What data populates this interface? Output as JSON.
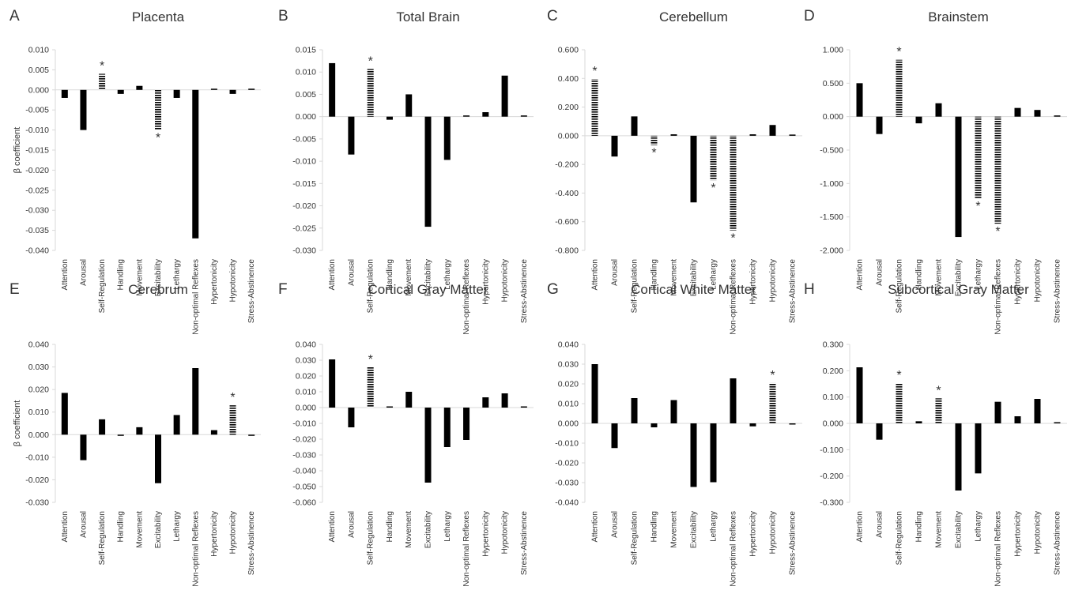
{
  "chart_data": [
    {
      "type": "bar",
      "panel_letter": "A",
      "title": "Placenta",
      "ylabel": "β coefficient",
      "ylim": [
        -0.04,
        0.01
      ],
      "ytick_step": 0.005,
      "ytick_decimals": 3,
      "categories": [
        "Attention",
        "Arousal",
        "Self-Regulation",
        "Handling",
        "Movement",
        "Excitability",
        "Lethargy",
        "Non-optimal Reflexes",
        "Hypertonicity",
        "Hypotonicity",
        "Stress-Abstinence"
      ],
      "values": [
        -0.002,
        -0.01,
        0.004,
        -0.001,
        0.001,
        -0.01,
        -0.002,
        -0.037,
        0.0,
        -0.001,
        0.0
      ],
      "significant": [
        false,
        false,
        true,
        false,
        false,
        true,
        false,
        false,
        false,
        false,
        false
      ],
      "star": "*"
    },
    {
      "type": "bar",
      "panel_letter": "B",
      "title": "Total Brain",
      "ylabel": "",
      "ylim": [
        -0.03,
        0.015
      ],
      "ytick_step": 0.005,
      "ytick_decimals": 3,
      "categories": [
        "Attention",
        "Arousal",
        "Self-Regulation",
        "Handling",
        "Movement",
        "Excitability",
        "Lethargy",
        "Non-optimal Reflexes",
        "Hypertonicity",
        "Hypotonicity",
        "Stress-Abstinence"
      ],
      "values": [
        0.012,
        -0.0085,
        0.0107,
        -0.0007,
        0.005,
        -0.0247,
        -0.0097,
        0.0002,
        0.001,
        0.0092,
        0.0002
      ],
      "significant": [
        false,
        false,
        true,
        false,
        false,
        false,
        false,
        false,
        false,
        false,
        false
      ],
      "star": "*"
    },
    {
      "type": "bar",
      "panel_letter": "C",
      "title": "Cerebellum",
      "ylabel": "",
      "ylim": [
        -0.8,
        0.6
      ],
      "ytick_step": 0.2,
      "ytick_decimals": 3,
      "categories": [
        "Attention",
        "Arousal",
        "Self-Regulation",
        "Handling",
        "Movement",
        "Excitability",
        "Lethargy",
        "Non-optimal Reflexes",
        "Hypertonicity",
        "Hypotonicity",
        "Stress-Abstinence"
      ],
      "values": [
        0.395,
        -0.145,
        0.135,
        -0.065,
        0.01,
        -0.465,
        -0.31,
        -0.66,
        0.01,
        0.075,
        0.005
      ],
      "significant": [
        true,
        false,
        false,
        true,
        false,
        false,
        true,
        true,
        false,
        false,
        false
      ],
      "star": "*"
    },
    {
      "type": "bar",
      "panel_letter": "D",
      "title": "Brainstem",
      "ylabel": "",
      "ylim": [
        -2.0,
        1.0
      ],
      "ytick_step": 0.5,
      "ytick_decimals": 3,
      "categories": [
        "Attention",
        "Arousal",
        "Self-Regulation",
        "Handling",
        "Movement",
        "Excitability",
        "Lethargy",
        "Non-optimal Reflexes",
        "Hypertonicity",
        "Hypotonicity",
        "Stress-Abstinence"
      ],
      "values": [
        0.5,
        -0.26,
        0.85,
        -0.1,
        0.2,
        -1.8,
        -1.22,
        -1.6,
        0.13,
        0.1,
        0.01
      ],
      "significant": [
        false,
        false,
        true,
        false,
        false,
        false,
        true,
        true,
        false,
        false,
        false
      ],
      "star": "*"
    },
    {
      "type": "bar",
      "panel_letter": "E",
      "title": "Cerebrum",
      "ylabel": "β coefficient",
      "ylim": [
        -0.03,
        0.04
      ],
      "ytick_step": 0.01,
      "ytick_decimals": 3,
      "categories": [
        "Attention",
        "Arousal",
        "Self-Regulation",
        "Handling",
        "Movement",
        "Excitability",
        "Lethargy",
        "Non-optimal Reflexes",
        "Hypertonicity",
        "Hypotonicity",
        "Stress-Abstinence"
      ],
      "values": [
        0.0185,
        -0.0113,
        0.0068,
        -0.0003,
        0.0033,
        -0.0215,
        0.0087,
        0.0295,
        0.002,
        0.013,
        -0.0003
      ],
      "significant": [
        false,
        false,
        false,
        false,
        false,
        false,
        false,
        false,
        false,
        true,
        false
      ],
      "star": "*"
    },
    {
      "type": "bar",
      "panel_letter": "F",
      "title": "Cortical Gray Matter",
      "ylabel": "",
      "ylim": [
        -0.06,
        0.04
      ],
      "ytick_step": 0.01,
      "ytick_decimals": 3,
      "categories": [
        "Attention",
        "Arousal",
        "Self-Regulation",
        "Handling",
        "Movement",
        "Excitability",
        "Lethargy",
        "Non-optimal Reflexes",
        "Hypertonicity",
        "Hypotonicity",
        "Stress-Abstinence"
      ],
      "values": [
        0.0305,
        -0.0125,
        0.0255,
        0.0005,
        0.01,
        -0.0475,
        -0.025,
        -0.0205,
        0.0065,
        0.009,
        0.0005
      ],
      "significant": [
        false,
        false,
        true,
        false,
        false,
        false,
        false,
        false,
        false,
        false,
        false
      ],
      "star": "*"
    },
    {
      "type": "bar",
      "panel_letter": "G",
      "title": "Cortical White Matter",
      "ylabel": "",
      "ylim": [
        -0.04,
        0.04
      ],
      "ytick_step": 0.01,
      "ytick_decimals": 3,
      "categories": [
        "Attention",
        "Arousal",
        "Self-Regulation",
        "Handling",
        "Movement",
        "Excitability",
        "Lethargy",
        "Non-optimal Reflexes",
        "Hypertonicity",
        "Hypotonicity",
        "Stress-Abstinence"
      ],
      "values": [
        0.03,
        -0.0125,
        0.0128,
        -0.002,
        0.0118,
        -0.0322,
        -0.0298,
        0.0228,
        -0.0015,
        0.0205,
        -0.0005
      ],
      "significant": [
        false,
        false,
        false,
        false,
        false,
        false,
        false,
        false,
        false,
        true,
        false
      ],
      "star": "*"
    },
    {
      "type": "bar",
      "panel_letter": "H",
      "title": "Subcortical Gray Matter",
      "ylabel": "",
      "ylim": [
        -0.3,
        0.3
      ],
      "ytick_step": 0.1,
      "ytick_decimals": 3,
      "categories": [
        "Attention",
        "Arousal",
        "Self-Regulation",
        "Handling",
        "Movement",
        "Excitability",
        "Lethargy",
        "Non-optimal Reflexes",
        "Hypertonicity",
        "Hypotonicity",
        "Stress-Abstinence"
      ],
      "values": [
        0.213,
        -0.062,
        0.153,
        0.008,
        0.095,
        -0.255,
        -0.19,
        0.082,
        0.027,
        0.093,
        0.003
      ],
      "significant": [
        false,
        false,
        true,
        false,
        true,
        false,
        false,
        false,
        false,
        false,
        false
      ],
      "star": "*"
    }
  ],
  "colors": {
    "bar_solid": "#000000",
    "bar_hatched": "#000000",
    "axis": "#d9d9d9",
    "text": "#333333",
    "background": "#ffffff"
  },
  "legend": "none",
  "grid": false
}
